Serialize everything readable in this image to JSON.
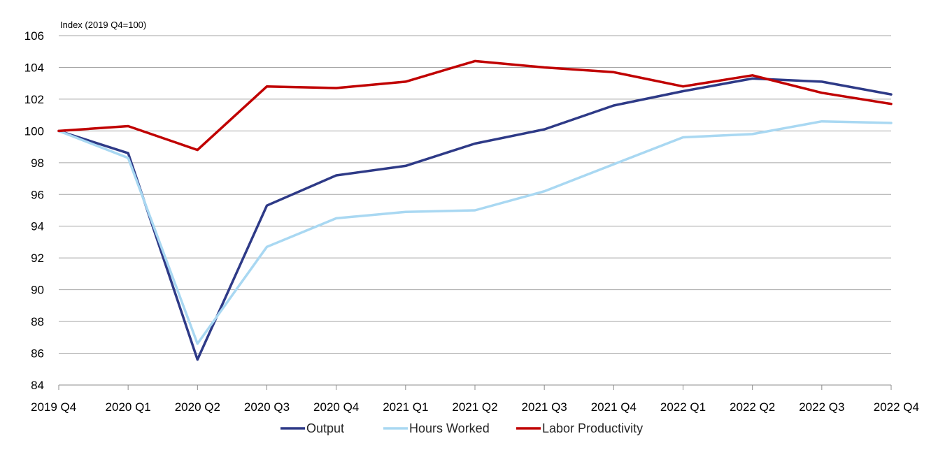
{
  "chart_data": {
    "type": "line",
    "ylabel": "Index (2019 Q4=100)",
    "ylim": [
      84,
      106
    ],
    "yticks": [
      84,
      86,
      88,
      90,
      92,
      94,
      96,
      98,
      100,
      102,
      104,
      106
    ],
    "categories": [
      "2019 Q4",
      "2020 Q1",
      "2020 Q2",
      "2020 Q3",
      "2020 Q4",
      "2021 Q1",
      "2021 Q2",
      "2021 Q3",
      "2021 Q4",
      "2022 Q1",
      "2022 Q2",
      "2022 Q3",
      "2022 Q4"
    ],
    "grid": true,
    "legend_position": "bottom",
    "series": [
      {
        "name": "Output",
        "color": "#2E3A87",
        "values": [
          100,
          98.6,
          85.6,
          95.3,
          97.2,
          97.8,
          99.2,
          100.1,
          101.6,
          102.5,
          103.3,
          103.1,
          102.3
        ]
      },
      {
        "name": "Hours Worked",
        "color": "#A9D8F2",
        "values": [
          100,
          98.3,
          86.6,
          92.7,
          94.5,
          94.9,
          95.0,
          96.2,
          97.9,
          99.6,
          99.8,
          100.6,
          100.5
        ]
      },
      {
        "name": "Labor Productivity",
        "color": "#C00000",
        "values": [
          100,
          100.3,
          98.8,
          102.8,
          102.7,
          103.1,
          104.4,
          104.0,
          103.7,
          102.8,
          103.5,
          102.4,
          101.7
        ]
      }
    ]
  }
}
